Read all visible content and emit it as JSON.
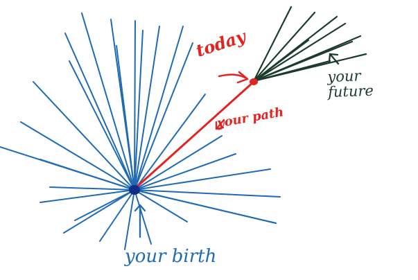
{
  "labels": {
    "today": "today",
    "your_path": "your path",
    "your_future": "your future",
    "your_birth": "your birth"
  },
  "colors": {
    "past": "#1f6ab5",
    "path": "#e3231f",
    "future": "#1b3b2c"
  }
}
